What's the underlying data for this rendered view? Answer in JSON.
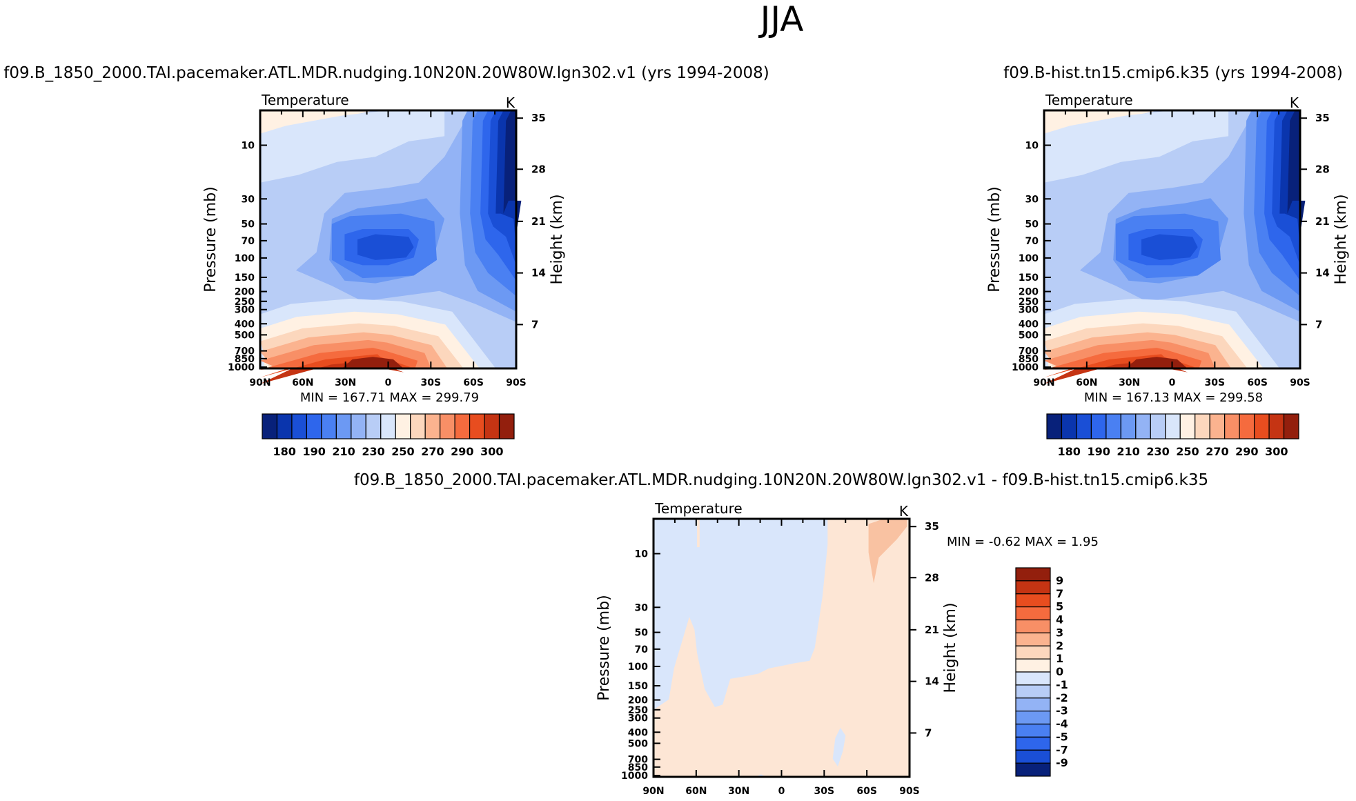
{
  "figure": {
    "season_title": "JJA"
  },
  "chart_data": [
    {
      "type": "contour",
      "variable": "Temperature",
      "units": "K",
      "title": "f09.B_1850_2000.TAI.pacemaker.ATL.MDR.nudging.10N20N.20W80W.lgn302.v1  (yrs 1994-2008)",
      "xlabel": "",
      "ylabel": "Pressure  (mb)",
      "y2label": "Height  (km)",
      "x_ticks": [
        "90N",
        "60N",
        "30N",
        "0",
        "30S",
        "60S",
        "90S"
      ],
      "y_ticks": [
        "10",
        "30",
        "50",
        "70",
        "100",
        "150",
        "200",
        "250",
        "300",
        "400",
        "500",
        "700",
        "850",
        "1000"
      ],
      "y2_ticks": [
        "35",
        "28",
        "21",
        "14",
        "7"
      ],
      "stats": "MIN = 167.71   MAX = 299.79",
      "min": 167.71,
      "max": 299.79,
      "colorbar_labels": [
        "180",
        "190",
        "210",
        "230",
        "250",
        "270",
        "290",
        "300"
      ]
    },
    {
      "type": "contour",
      "variable": "Temperature",
      "units": "K",
      "title": "f09.B-hist.tn15.cmip6.k35  (yrs 1994-2008)",
      "xlabel": "",
      "ylabel": "Pressure  (mb)",
      "y2label": "Height  (km)",
      "x_ticks": [
        "90N",
        "60N",
        "30N",
        "0",
        "30S",
        "60S",
        "90S"
      ],
      "y_ticks": [
        "10",
        "30",
        "50",
        "70",
        "100",
        "150",
        "200",
        "250",
        "300",
        "400",
        "500",
        "700",
        "850",
        "1000"
      ],
      "y2_ticks": [
        "35",
        "28",
        "21",
        "14",
        "7"
      ],
      "stats": "MIN = 167.13   MAX = 299.58",
      "min": 167.13,
      "max": 299.58,
      "colorbar_labels": [
        "180",
        "190",
        "210",
        "230",
        "250",
        "270",
        "290",
        "300"
      ]
    },
    {
      "type": "contour",
      "variable": "Temperature",
      "units": "K",
      "title": "f09.B_1850_2000.TAI.pacemaker.ATL.MDR.nudging.10N20N.20W80W.lgn302.v1  -  f09.B-hist.tn15.cmip6.k35",
      "xlabel": "",
      "ylabel": "Pressure  (mb)",
      "y2label": "Height  (km)",
      "x_ticks": [
        "90N",
        "60N",
        "30N",
        "0",
        "30S",
        "60S",
        "90S"
      ],
      "y_ticks": [
        "10",
        "30",
        "50",
        "70",
        "100",
        "150",
        "200",
        "250",
        "300",
        "400",
        "500",
        "700",
        "850",
        "1000"
      ],
      "y2_ticks": [
        "35",
        "28",
        "21",
        "14",
        "7"
      ],
      "stats": "MIN =    -0.62   MAX =     1.95",
      "min": -0.62,
      "max": 1.95,
      "colorbar_labels": [
        "9",
        "7",
        "5",
        "4",
        "3",
        "2",
        "1",
        "0",
        "-1",
        "-2",
        "-3",
        "-4",
        "-5",
        "-7",
        "-9"
      ]
    }
  ],
  "palettes": {
    "temperature": [
      "#08217a",
      "#0a35ad",
      "#1a4fd6",
      "#2e66ec",
      "#4a80f2",
      "#6c99f3",
      "#93b3f5",
      "#b8cdf6",
      "#d9e6fb",
      "#fff1e3",
      "#fcd7bd",
      "#fbb38f",
      "#f88f66",
      "#f56b3e",
      "#e84d1f",
      "#c53413",
      "#931f0d"
    ],
    "difference": [
      "#931f0d",
      "#c53413",
      "#e84d1f",
      "#f56b3e",
      "#f88f66",
      "#fbb38f",
      "#fcd7bd",
      "#fff1e3",
      "#d9e6fb",
      "#b8cdf6",
      "#93b3f5",
      "#6c99f3",
      "#4a80f2",
      "#2e66ec",
      "#1a4fd6",
      "#0a35ad",
      "#08217a"
    ],
    "diff_light_red": "#fde6d5",
    "diff_light_blue": "#d9e6fb",
    "diff_med_red": "#f9c2a2"
  }
}
